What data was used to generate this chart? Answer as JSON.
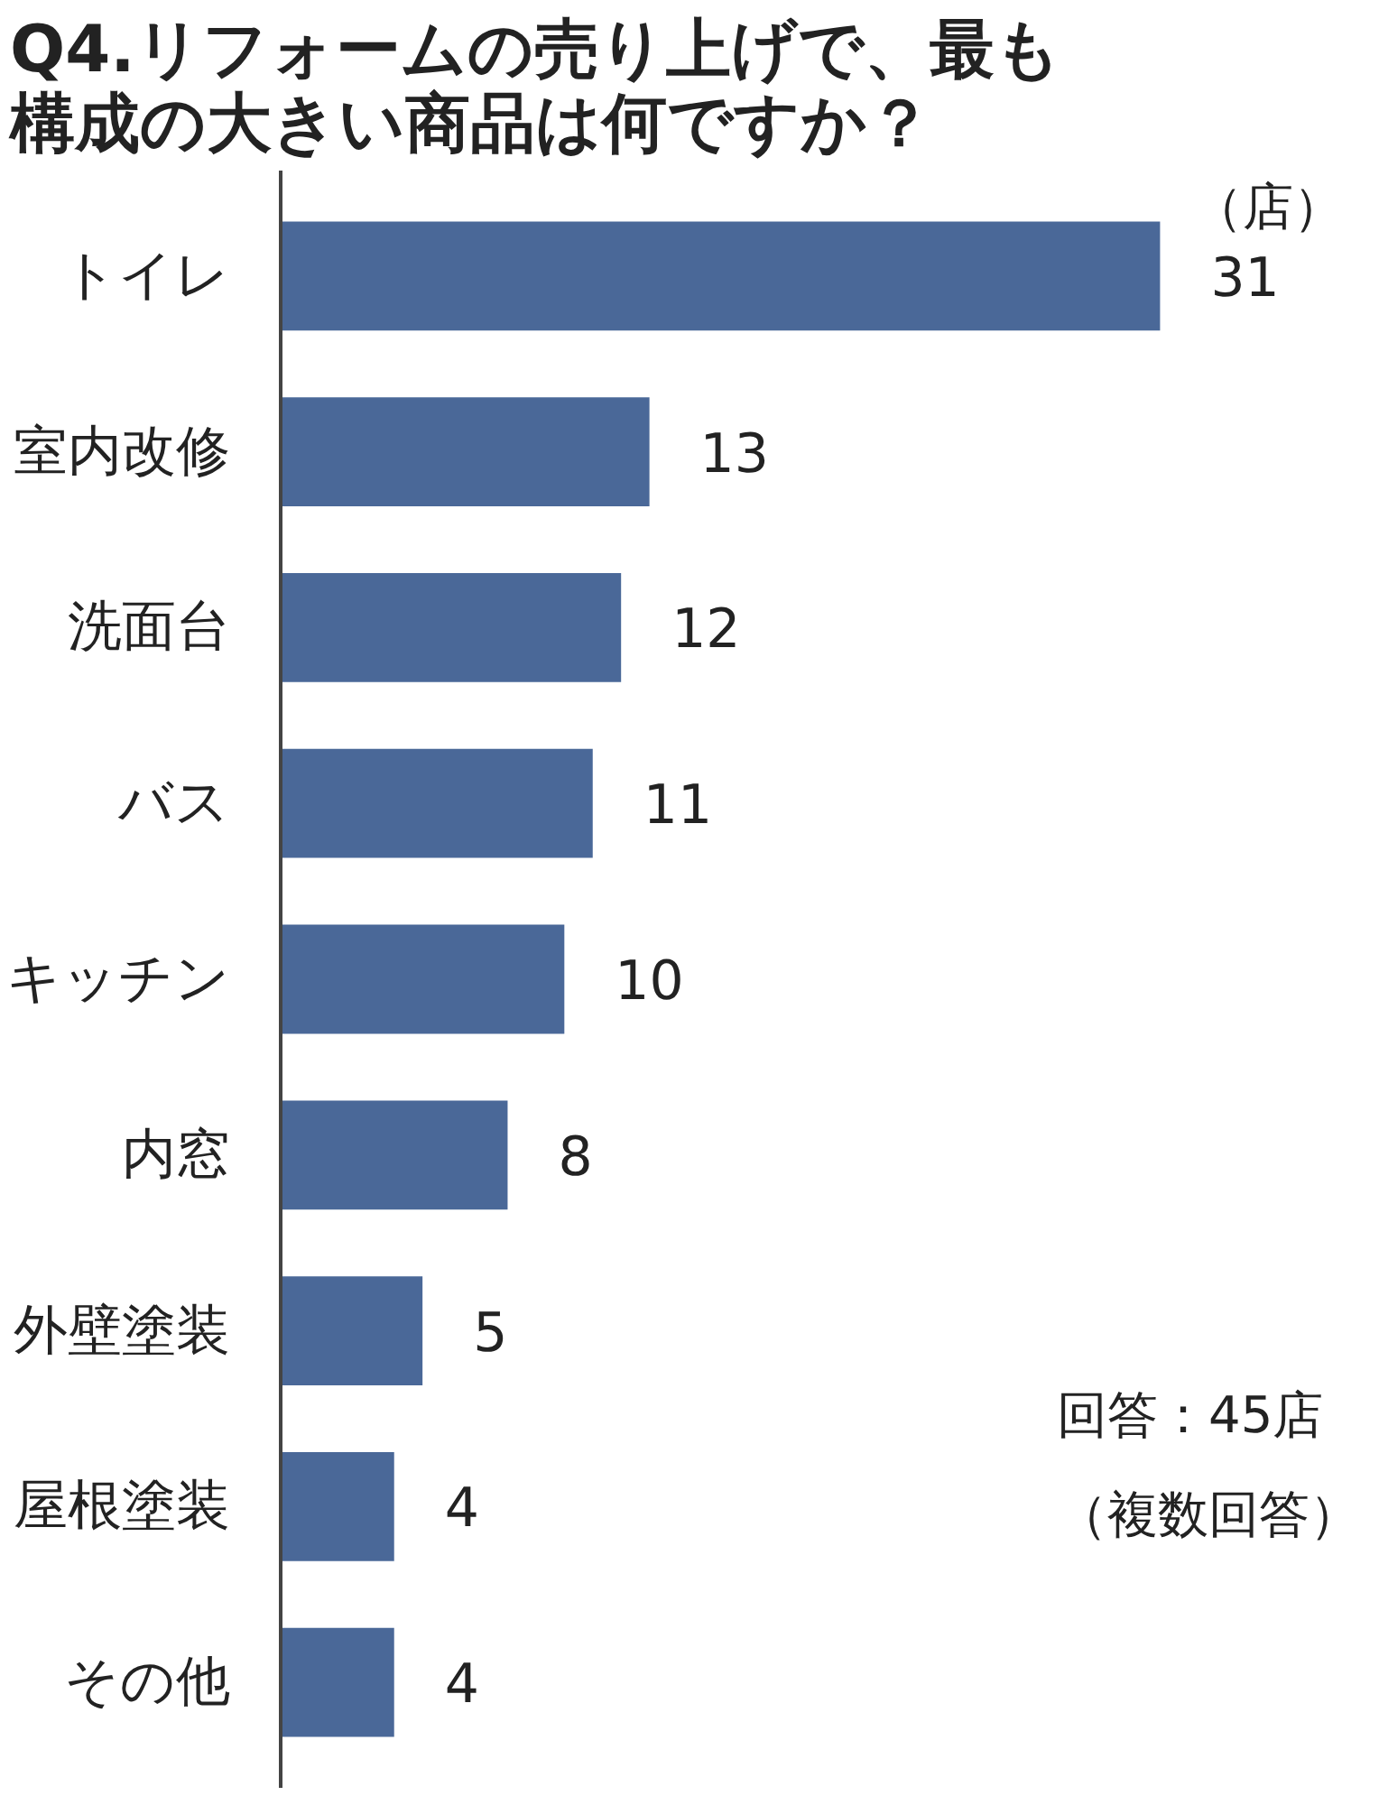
{
  "chart_data": {
    "type": "bar",
    "orientation": "horizontal",
    "title": "Q4.リフォームの売り上げで、最も構成の大きい商品は何ですか？",
    "categories": [
      "トイレ",
      "室内改修",
      "洗面台",
      "バス",
      "キッチン",
      "内窓",
      "外壁塗装",
      "屋根塗装",
      "その他"
    ],
    "values": [
      31,
      13,
      12,
      11,
      10,
      8,
      5,
      4,
      4
    ],
    "color": "#4a6898",
    "data_labels": true,
    "grid": false,
    "annotations": [
      "（店）",
      "回答：45店",
      "（複数回答）"
    ]
  }
}
